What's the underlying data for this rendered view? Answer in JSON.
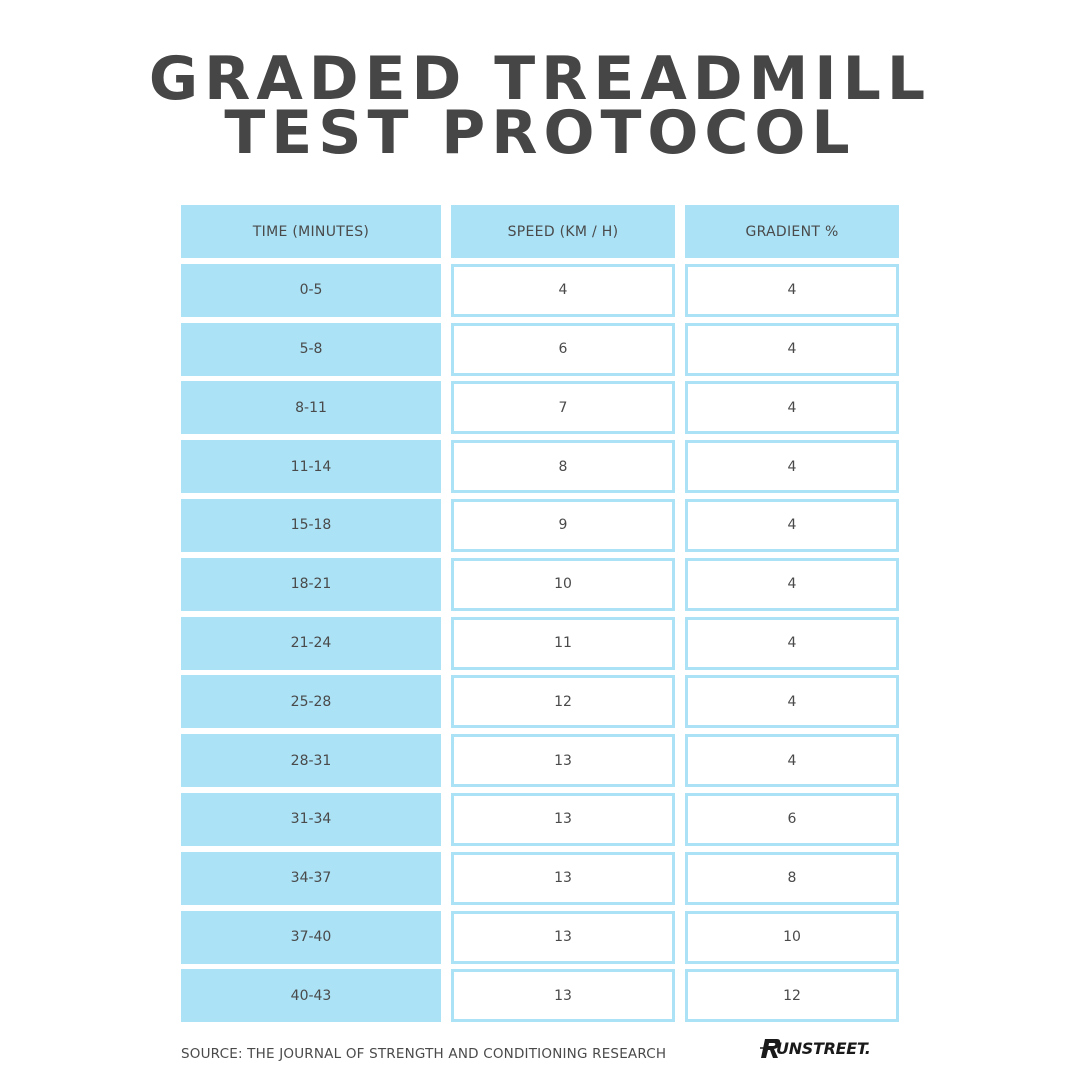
{
  "title": {
    "line1": "GRADED TREADMILL",
    "line2": "TEST PROTOCOL"
  },
  "table": {
    "headers": [
      "TIME (MINUTES)",
      "SPEED (KM / H)",
      "GRADIENT %"
    ],
    "rows": [
      [
        "0-5",
        "4",
        "4"
      ],
      [
        "5-8",
        "6",
        "4"
      ],
      [
        "8-11",
        "7",
        "4"
      ],
      [
        "11-14",
        "8",
        "4"
      ],
      [
        "15-18",
        "9",
        "4"
      ],
      [
        "18-21",
        "10",
        "4"
      ],
      [
        "21-24",
        "11",
        "4"
      ],
      [
        "25-28",
        "12",
        "4"
      ],
      [
        "28-31",
        "13",
        "4"
      ],
      [
        "31-34",
        "13",
        "6"
      ],
      [
        "34-37",
        "13",
        "8"
      ],
      [
        "37-40",
        "13",
        "10"
      ],
      [
        "40-43",
        "13",
        "12"
      ]
    ]
  },
  "footer": {
    "source": "SOURCE: THE JOURNAL OF STRENGTH AND CONDITIONING RESEARCH",
    "logo_text": "UNSTREET."
  },
  "colors": {
    "accent": "#abe2f6",
    "text": "#464646"
  }
}
